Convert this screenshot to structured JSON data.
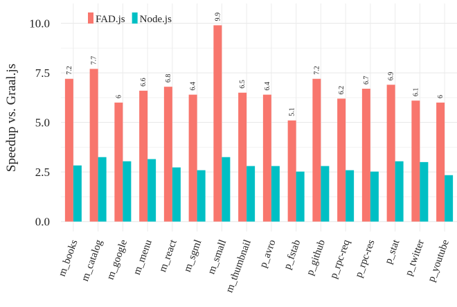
{
  "chart_data": {
    "type": "bar",
    "ylabel": "Speedup vs. Graal.js",
    "categories": [
      "m_books",
      "m_catalog",
      "m_google",
      "m_menu",
      "m_react",
      "m_sgml",
      "m_small",
      "m_thumbnail",
      "p_avro",
      "p_fstab",
      "p_github",
      "p_rpc-req",
      "p_rpc-res",
      "p_stat",
      "p_twitter",
      "p_youtube"
    ],
    "series": [
      {
        "name": "FAD.js",
        "color": "#f8766d",
        "values": [
          7.2,
          7.7,
          6,
          6.6,
          6.8,
          6.4,
          9.9,
          6.5,
          6.4,
          5.1,
          7.2,
          6.2,
          6.7,
          6.9,
          6.1,
          6
        ]
      },
      {
        "name": "Node.js",
        "color": "#00bfc4",
        "values": [
          2.83,
          3.25,
          3.04,
          3.15,
          2.73,
          2.59,
          3.25,
          2.8,
          2.8,
          2.52,
          2.8,
          2.59,
          2.52,
          3.04,
          3.0,
          2.34
        ]
      }
    ],
    "ylim": [
      -0.5,
      11
    ],
    "yticks": [
      {
        "value": 0,
        "label": "0.0"
      },
      {
        "value": 2.5,
        "label": "2.5"
      },
      {
        "value": 5,
        "label": "5.0"
      },
      {
        "value": 7.5,
        "label": "7.5"
      },
      {
        "value": 10,
        "label": "10.0"
      }
    ],
    "grid": true,
    "legend": "top-left",
    "data_labels_series": 0
  }
}
